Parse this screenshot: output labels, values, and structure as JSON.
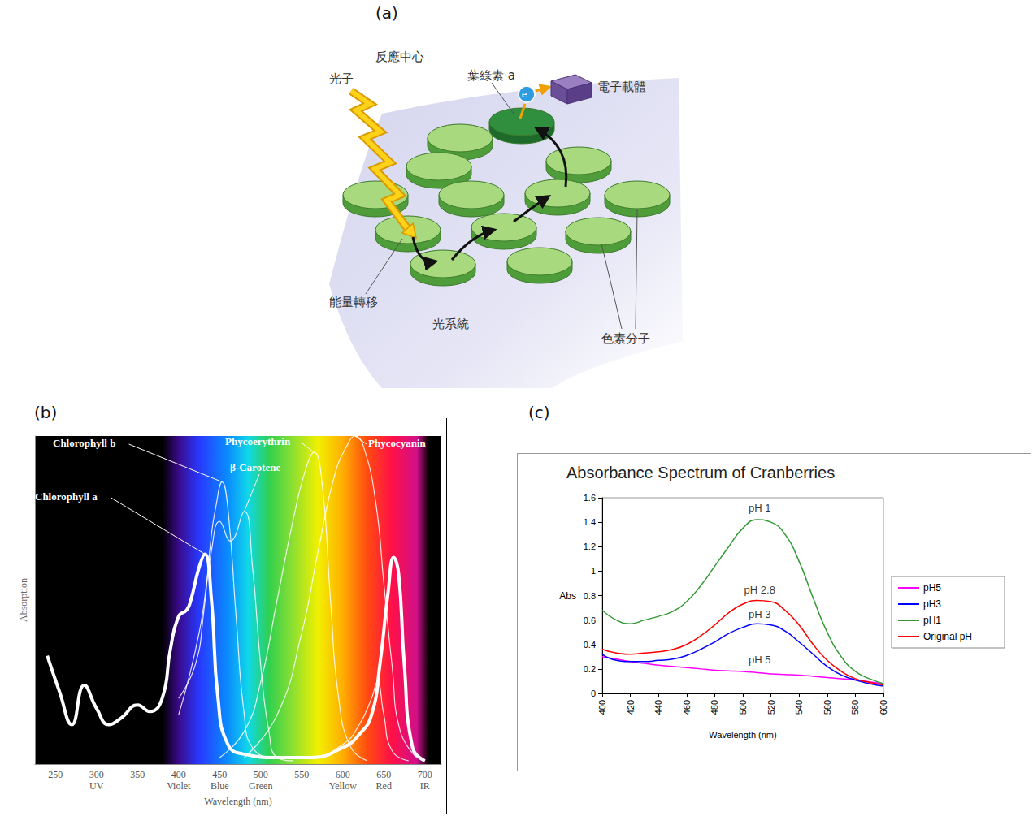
{
  "diagram": {
    "label": "(a)",
    "title": "反應中心",
    "photon": "光子",
    "chlorophyll_a": "葉綠素 a",
    "electron": "e⁻",
    "electron_carrier": "電子載體",
    "energy_transfer": "能量轉移",
    "photosystem": "光系統",
    "pigment_molecules": "色素分子"
  },
  "chart_data": [
    {
      "label": "(b)",
      "type": "line",
      "x_label": "Wavelength (nm)",
      "y_label": "Absorption",
      "xlim": [
        225,
        720
      ],
      "xticks": [
        250,
        300,
        350,
        400,
        450,
        500,
        550,
        600,
        650,
        700
      ],
      "bands": [
        {
          "x": 300,
          "label": "UV"
        },
        {
          "x": 400,
          "label": "Violet"
        },
        {
          "x": 450,
          "label": "Blue"
        },
        {
          "x": 500,
          "label": "Green"
        },
        {
          "x": 600,
          "label": "Yellow"
        },
        {
          "x": 650,
          "label": "Red"
        },
        {
          "x": 700,
          "label": "IR"
        }
      ],
      "ylim": [
        0,
        1
      ],
      "tick_labels": "x",
      "grid": false,
      "series": [
        {
          "name": "Chlorophyll a",
          "color": "#ffffff",
          "line_style": "thick",
          "x": [
            240,
            255,
            270,
            285,
            300,
            315,
            330,
            350,
            365,
            380,
            390,
            400,
            410,
            415,
            425,
            432,
            440,
            448,
            460,
            480,
            520,
            560,
            600,
            620,
            635,
            645,
            655,
            662,
            668,
            675,
            685,
            700
          ],
          "values": [
            0.33,
            0.22,
            0.12,
            0.24,
            0.17,
            0.12,
            0.14,
            0.18,
            0.16,
            0.2,
            0.35,
            0.45,
            0.47,
            0.5,
            0.6,
            0.64,
            0.5,
            0.2,
            0.06,
            0.03,
            0.02,
            0.02,
            0.05,
            0.09,
            0.15,
            0.3,
            0.52,
            0.63,
            0.58,
            0.3,
            0.05,
            0.01
          ]
        },
        {
          "name": "Chlorophyll b",
          "color": "#ffffff",
          "line_style": "solid",
          "x": [
            400,
            420,
            430,
            440,
            445,
            453,
            460,
            470,
            480,
            490,
            520,
            560,
            600,
            620,
            635,
            642,
            650,
            660,
            680
          ],
          "values": [
            0.2,
            0.3,
            0.45,
            0.7,
            0.78,
            0.86,
            0.78,
            0.45,
            0.15,
            0.05,
            0.02,
            0.02,
            0.06,
            0.12,
            0.2,
            0.25,
            0.15,
            0.04,
            0.01
          ]
        },
        {
          "name": "β-Carotene",
          "color": "#ffffff",
          "line_style": "solid",
          "x": [
            400,
            425,
            440,
            450,
            463,
            480,
            490,
            500,
            510,
            520,
            540
          ],
          "values": [
            0.15,
            0.4,
            0.65,
            0.74,
            0.68,
            0.77,
            0.6,
            0.3,
            0.1,
            0.02,
            0.01
          ]
        },
        {
          "name": "Phycoerythrin",
          "color": "#ffffff",
          "line_style": "solid",
          "x": [
            450,
            480,
            500,
            520,
            540,
            555,
            565,
            575,
            585,
            595,
            610,
            630
          ],
          "values": [
            0.02,
            0.1,
            0.25,
            0.5,
            0.75,
            0.9,
            0.95,
            0.85,
            0.5,
            0.2,
            0.05,
            0.01
          ]
        },
        {
          "name": "Phycocyanin",
          "color": "#ffffff",
          "line_style": "solid",
          "x": [
            480,
            520,
            550,
            570,
            590,
            605,
            615,
            625,
            640,
            650,
            660,
            670,
            690
          ],
          "values": [
            0.02,
            0.15,
            0.4,
            0.65,
            0.88,
            0.97,
            1.0,
            0.97,
            0.8,
            0.55,
            0.3,
            0.1,
            0.02
          ]
        }
      ]
    },
    {
      "label": "(c)",
      "type": "line",
      "title": "Absorbance Spectrum of Cranberries",
      "x_label": "Wavelength (nm)",
      "y_label": "Abs",
      "x": [
        400,
        410,
        420,
        430,
        440,
        450,
        460,
        470,
        480,
        490,
        500,
        510,
        520,
        530,
        540,
        550,
        560,
        570,
        580,
        590,
        600
      ],
      "xlim": [
        400,
        600
      ],
      "xticks": [
        400,
        420,
        440,
        460,
        480,
        500,
        520,
        540,
        560,
        580,
        600
      ],
      "ylim": [
        0,
        1.6
      ],
      "yticks": [
        0,
        0.2,
        0.4,
        0.6,
        0.8,
        1,
        1.2,
        1.4,
        1.6
      ],
      "grid": false,
      "legend": "right",
      "series": [
        {
          "name": "pH5",
          "color": "#ff00ff",
          "values": [
            0.3,
            0.28,
            0.26,
            0.245,
            0.23,
            0.22,
            0.21,
            0.2,
            0.19,
            0.185,
            0.18,
            0.17,
            0.16,
            0.155,
            0.15,
            0.14,
            0.13,
            0.12,
            0.11,
            0.095,
            0.08
          ]
        },
        {
          "name": "pH3",
          "color": "#0000ff",
          "values": [
            0.32,
            0.27,
            0.26,
            0.26,
            0.27,
            0.28,
            0.31,
            0.36,
            0.42,
            0.49,
            0.54,
            0.57,
            0.56,
            0.51,
            0.42,
            0.32,
            0.22,
            0.15,
            0.11,
            0.08,
            0.06
          ]
        },
        {
          "name": "pH1",
          "color": "#339933",
          "values": [
            0.68,
            0.6,
            0.57,
            0.6,
            0.63,
            0.67,
            0.75,
            0.88,
            1.04,
            1.2,
            1.35,
            1.42,
            1.4,
            1.3,
            1.08,
            0.78,
            0.5,
            0.3,
            0.18,
            0.12,
            0.08
          ]
        },
        {
          "name": "Original pH",
          "color": "#ff0000",
          "values": [
            0.36,
            0.33,
            0.32,
            0.33,
            0.34,
            0.36,
            0.4,
            0.47,
            0.56,
            0.66,
            0.73,
            0.76,
            0.75,
            0.68,
            0.56,
            0.4,
            0.27,
            0.18,
            0.12,
            0.09,
            0.07
          ]
        }
      ],
      "annotations": [
        {
          "text": "pH 1",
          "x": 512,
          "y": 1.46
        },
        {
          "text": "pH 2.8",
          "x": 512,
          "y": 0.79
        },
        {
          "text": "pH 3",
          "x": 512,
          "y": 0.59
        },
        {
          "text": "pH 5",
          "x": 512,
          "y": 0.22
        }
      ]
    }
  ]
}
